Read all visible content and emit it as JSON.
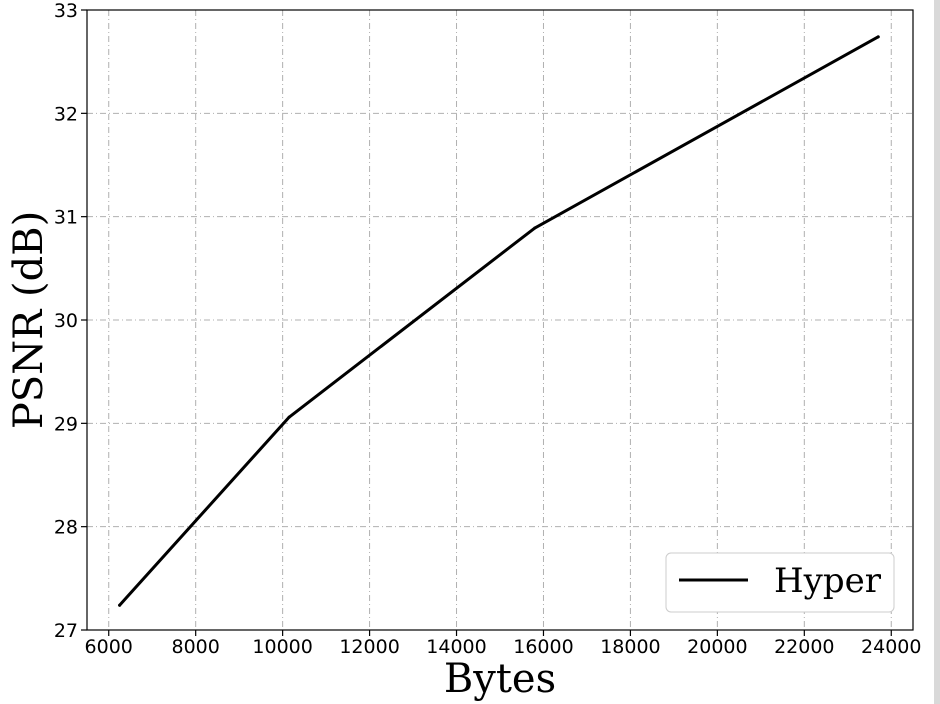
{
  "chart_data": {
    "type": "line",
    "xlabel": "Bytes",
    "ylabel": "PSNR (dB)",
    "xlim": [
      5500,
      24500
    ],
    "ylim": [
      27,
      33
    ],
    "x_ticks": [
      6000,
      8000,
      10000,
      12000,
      14000,
      16000,
      18000,
      20000,
      22000,
      24000
    ],
    "y_ticks": [
      27,
      28,
      29,
      30,
      31,
      32,
      33
    ],
    "grid": true,
    "legend_position": "lower-right",
    "series": [
      {
        "name": "Hyper",
        "color": "#000000",
        "x": [
          6250,
          10150,
          15800,
          23700
        ],
        "y": [
          27.24,
          29.06,
          30.89,
          32.74
        ]
      }
    ]
  }
}
